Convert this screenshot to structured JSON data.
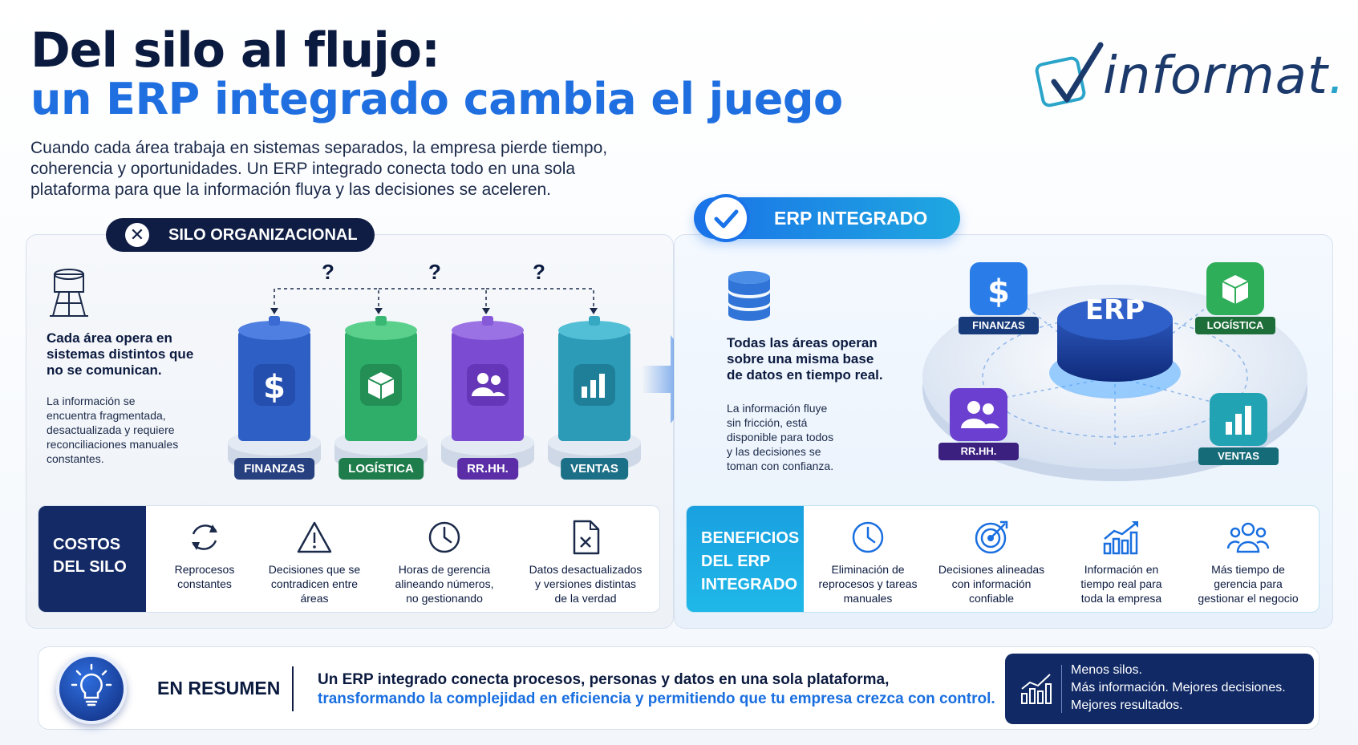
{
  "header": {
    "title_line1": "Del silo al flujo:",
    "title_line2": "un ERP integrado cambia el juego",
    "intro_line1": "Cuando cada área trabaja en sistemas separados, la empresa pierde tiempo,",
    "intro_line2": "coherencia y oportunidades. Un ERP integrado conecta todo en una sola",
    "intro_line3": "plataforma para que la información fluya y las decisiones se aceleren.",
    "logo_text": "informat",
    "logo_dot": "."
  },
  "silo": {
    "pill_label": "SILO ORGANIZACIONAL",
    "lead_line1": "Cada área opera en",
    "lead_line2": "sistemas distintos que",
    "lead_line3": "no se comunican.",
    "sub_line1": "La información se",
    "sub_line2": "encuentra fragmentada,",
    "sub_line3": "desactualizada y requiere",
    "sub_line4": "reconciliaciones manuales",
    "sub_line5": "constantes.",
    "question_mark": "?",
    "silos": [
      {
        "label": "FINANZAS",
        "icon": "dollar-icon",
        "color": "#2e5fc4"
      },
      {
        "label": "LOGÍSTICA",
        "icon": "box-icon",
        "color": "#2fae6a"
      },
      {
        "label": "RR.HH.",
        "icon": "users-icon",
        "color": "#7b4cd1"
      },
      {
        "label": "VENTAS",
        "icon": "bar-chart-icon",
        "color": "#2b9bb8"
      }
    ]
  },
  "erp": {
    "pill_label": "ERP INTEGRADO",
    "lead_line1": "Todas las áreas operan",
    "lead_line2": "sobre una misma base",
    "lead_line3": "de datos en tiempo real.",
    "sub_line1": "La información fluye",
    "sub_line2": "sin fricción, está",
    "sub_line3": "disponible para todos",
    "sub_line4": "y las decisiones se",
    "sub_line5": "toman con confianza.",
    "hub_label": "ERP",
    "nodes": [
      {
        "label": "FINANZAS",
        "icon": "dollar-icon",
        "color": "#2a7de8"
      },
      {
        "label": "LOGÍSTICA",
        "icon": "box-icon",
        "color": "#2fae5a"
      },
      {
        "label": "RR.HH.",
        "icon": "users-icon",
        "color": "#6b3fd0"
      },
      {
        "label": "VENTAS",
        "icon": "bar-chart-icon",
        "color": "#22a3b3"
      }
    ]
  },
  "costs": {
    "head_line1": "COSTOS",
    "head_line2": "DEL SILO",
    "items": [
      {
        "icon": "refresh-icon",
        "line1": "Reprocesos",
        "line2": "constantes",
        "line3": ""
      },
      {
        "icon": "warning-icon",
        "line1": "Decisiones que se",
        "line2": "contradicen entre",
        "line3": "áreas"
      },
      {
        "icon": "clock-icon",
        "line1": "Horas de gerencia",
        "line2": "alineando números,",
        "line3": "no gestionando"
      },
      {
        "icon": "file-x-icon",
        "line1": "Datos desactualizados",
        "line2": "y versiones distintas",
        "line3": "de la verdad"
      }
    ]
  },
  "benefits": {
    "head_line1": "BENEFICIOS",
    "head_line2": "DEL ERP",
    "head_line3": "INTEGRADO",
    "items": [
      {
        "icon": "clock-icon",
        "line1": "Eliminación de",
        "line2": "reprocesos y tareas",
        "line3": "manuales"
      },
      {
        "icon": "target-icon",
        "line1": "Decisiones alineadas",
        "line2": "con información",
        "line3": "confiable"
      },
      {
        "icon": "growth-chart-icon",
        "line1": "Información en",
        "line2": "tiempo real para",
        "line3": "toda la empresa"
      },
      {
        "icon": "team-icon",
        "line1": "Más tiempo de",
        "line2": "gerencia para",
        "line3": "gestionar el negocio"
      }
    ]
  },
  "summary": {
    "head": "EN RESUMEN",
    "line1": "Un ERP integrado conecta procesos, personas y datos en una sola plataforma,",
    "line2": "transformando la complejidad en eficiencia y permitiendo que tu empresa crezca con control.",
    "box_line1": "Menos silos.",
    "box_line2": "Más información. Mejores decisiones.",
    "box_line3": "Mejores resultados."
  }
}
